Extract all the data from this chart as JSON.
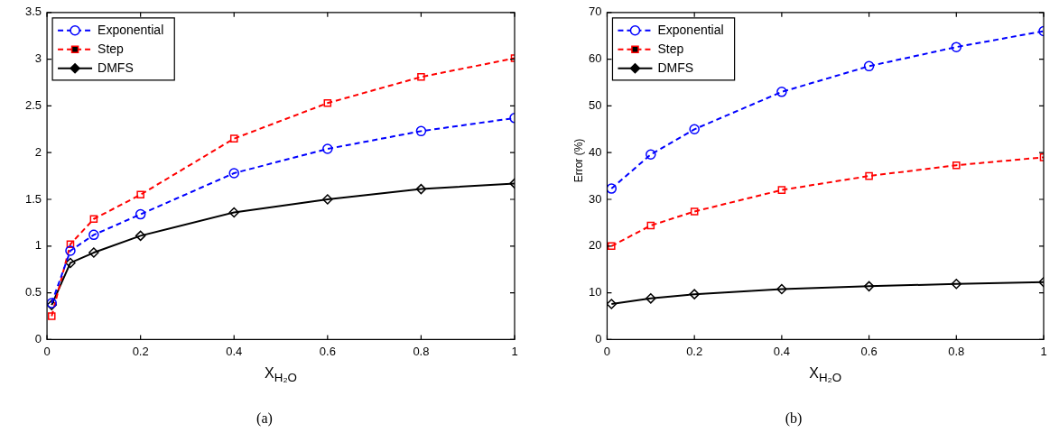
{
  "chart_data": [
    {
      "type": "line",
      "xlabel": "X$_{H₂O}$",
      "annotations": [
        "(a)"
      ],
      "x": [
        0.01,
        0.05,
        0.1,
        0.2,
        0.4,
        0.6,
        0.8,
        1
      ],
      "xlim": [
        0,
        1
      ],
      "xticks": [
        0,
        0.2,
        0.4,
        0.6,
        0.8,
        1
      ],
      "ylim": [
        0,
        3.5
      ],
      "yticks": [
        0,
        0.5,
        1,
        1.5,
        2,
        2.5,
        3,
        3.5
      ],
      "grid": false,
      "legend": "top left",
      "series": [
        {
          "name": "Exponential",
          "color": "#0000ff",
          "marker": "circle",
          "line_style": "dashed",
          "values": [
            0.39,
            0.95,
            1.12,
            1.34,
            1.78,
            2.04,
            2.23,
            2.37
          ]
        },
        {
          "name": "Step",
          "color": "#ff0000",
          "marker": "square",
          "line_style": "dashed",
          "values": [
            0.25,
            1.02,
            1.29,
            1.55,
            2.15,
            2.53,
            2.81,
            3.01
          ]
        },
        {
          "name": "DMFS",
          "color": "#000000",
          "marker": "diamond",
          "line_style": "solid",
          "values": [
            0.37,
            0.82,
            0.93,
            1.11,
            1.36,
            1.5,
            1.61,
            1.67
          ]
        }
      ]
    },
    {
      "type": "line",
      "xlabel": "X$_{H₂O}$",
      "ylabel": "Error (%)",
      "annotations": [
        "(b)"
      ],
      "x": [
        0.01,
        0.1,
        0.2,
        0.4,
        0.6,
        0.8,
        1
      ],
      "xlim": [
        0,
        1
      ],
      "xticks": [
        0,
        0.2,
        0.4,
        0.6,
        0.8,
        1
      ],
      "ylim": [
        0,
        70
      ],
      "yticks": [
        0,
        10,
        20,
        30,
        40,
        50,
        60,
        70
      ],
      "grid": false,
      "legend": "top left",
      "series": [
        {
          "name": "Exponential",
          "color": "#0000ff",
          "marker": "circle",
          "line_style": "dashed",
          "values": [
            32.3,
            39.6,
            45,
            53,
            58.5,
            62.6,
            66
          ]
        },
        {
          "name": "Step",
          "color": "#ff0000",
          "marker": "square",
          "line_style": "dashed",
          "values": [
            20,
            24.4,
            27.4,
            32,
            35,
            37.3,
            39
          ]
        },
        {
          "name": "DMFS",
          "color": "#000000",
          "marker": "diamond",
          "line_style": "solid",
          "values": [
            7.6,
            8.8,
            9.7,
            10.8,
            11.4,
            11.9,
            12.3
          ]
        }
      ]
    }
  ]
}
